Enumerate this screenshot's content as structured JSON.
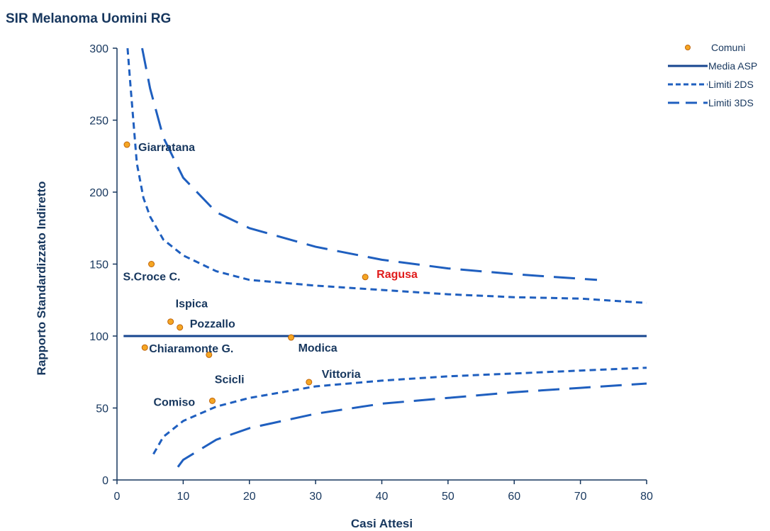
{
  "title": "SIR Melanoma Uomini RG",
  "chart_data": {
    "type": "scatter",
    "title": "SIR Melanoma Uomini RG",
    "xlabel": "Casi Attesi",
    "ylabel": "Rapporto Standardizzato Indiretto",
    "xlim": [
      0,
      80
    ],
    "ylim": [
      0,
      300
    ],
    "xticks": [
      0,
      10,
      20,
      30,
      40,
      50,
      60,
      70,
      80
    ],
    "yticks": [
      0,
      50,
      100,
      150,
      200,
      250,
      300
    ],
    "grid": false,
    "legend_position": "top-right",
    "colors": {
      "points": "#f5a623",
      "point_border": "#c0640a",
      "lines": "#1f5fbf",
      "mean_line": "#17468f",
      "text": "#17375e",
      "highlight": "#e01b1b"
    },
    "series": [
      {
        "name": "Comuni",
        "kind": "points",
        "points": [
          {
            "label": "Giarratana",
            "x": 1.5,
            "y": 233
          },
          {
            "label": "S.Croce C.",
            "x": 5.2,
            "y": 150
          },
          {
            "label": "Ispica",
            "x": 8.1,
            "y": 110
          },
          {
            "label": "Pozzallo",
            "x": 9.5,
            "y": 106
          },
          {
            "label": "Chiaramonte G.",
            "x": 4.2,
            "y": 92
          },
          {
            "label": "Scicli",
            "x": 13.9,
            "y": 87
          },
          {
            "label": "Modica",
            "x": 26.3,
            "y": 99
          },
          {
            "label": "Ragusa",
            "x": 37.5,
            "y": 141,
            "highlight": true
          },
          {
            "label": "Vittoria",
            "x": 29.0,
            "y": 68
          },
          {
            "label": "Comiso",
            "x": 14.4,
            "y": 55
          }
        ]
      },
      {
        "name": "Media ASP",
        "kind": "line",
        "x": [
          1,
          80
        ],
        "y": [
          100,
          100
        ]
      },
      {
        "name": "Limiti 2DS",
        "kind": "dashed",
        "upper": {
          "x": [
            1.6,
            2,
            3,
            4,
            5,
            7,
            10,
            15,
            20,
            30,
            40,
            50,
            60,
            70,
            80
          ],
          "y": [
            300,
            276,
            220,
            196,
            183,
            167,
            156,
            145,
            139,
            135,
            132,
            129,
            127,
            126,
            123
          ]
        },
        "lower": {
          "x": [
            5.5,
            7,
            10,
            15,
            20,
            30,
            40,
            50,
            60,
            70,
            80
          ],
          "y": [
            18,
            30,
            41,
            51,
            57,
            65,
            69,
            72,
            74,
            76,
            78
          ]
        }
      },
      {
        "name": "Limiti 3DS",
        "kind": "longdash",
        "upper": {
          "x": [
            3.8,
            5,
            7,
            10,
            15,
            20,
            30,
            40,
            50,
            60,
            72.5
          ],
          "y": [
            300,
            272,
            238,
            210,
            186,
            175,
            162,
            153,
            147,
            143,
            139
          ]
        },
        "lower": {
          "x": [
            9.2,
            10,
            15,
            20,
            30,
            40,
            50,
            60,
            70,
            80
          ],
          "y": [
            9,
            14,
            28,
            36,
            46,
            53,
            57,
            61,
            64,
            67
          ]
        }
      }
    ]
  }
}
